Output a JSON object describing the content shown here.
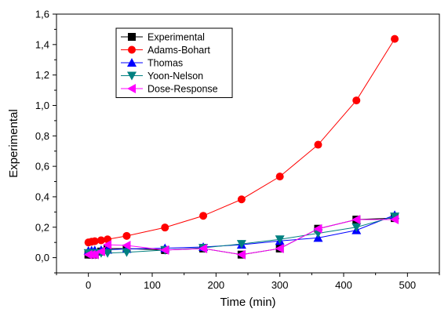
{
  "chart_data": {
    "type": "line",
    "xlabel": "Time (min)",
    "ylabel": "Experimental",
    "xlim": [
      -50,
      550
    ],
    "ylim": [
      -0.1,
      1.6
    ],
    "xticks": [
      0,
      100,
      200,
      300,
      400,
      500
    ],
    "xtick_labels": [
      "0",
      "100",
      "200",
      "300",
      "400",
      "500"
    ],
    "yticks": [
      0.0,
      0.2,
      0.4,
      0.6,
      0.8,
      1.0,
      1.2,
      1.4,
      1.6
    ],
    "ytick_labels": [
      "0,0",
      "0,2",
      "0,4",
      "0,6",
      "0,8",
      "1,0",
      "1,2",
      "1,4",
      "1,6"
    ],
    "grid": false,
    "legend_position": "top-left",
    "series": [
      {
        "name": "Experimental",
        "color": "#000000",
        "marker": "square",
        "x": [
          0,
          5,
          10,
          20,
          30,
          60,
          120,
          180,
          240,
          300,
          360,
          420,
          480
        ],
        "y": [
          0.02,
          0.02,
          0.02,
          0.04,
          0.06,
          0.06,
          0.05,
          0.06,
          0.02,
          0.06,
          0.19,
          0.25,
          0.26
        ]
      },
      {
        "name": "Adams-Bohart",
        "color": "#ff0000",
        "marker": "circle",
        "x": [
          0,
          5,
          10,
          20,
          30,
          60,
          120,
          180,
          240,
          300,
          360,
          420,
          480
        ],
        "y": [
          0.1,
          0.105,
          0.108,
          0.114,
          0.12,
          0.143,
          0.198,
          0.275,
          0.383,
          0.533,
          0.742,
          1.033,
          1.437
        ]
      },
      {
        "name": "Thomas",
        "color": "#0000ff",
        "marker": "triangle-up",
        "x": [
          0,
          5,
          10,
          20,
          30,
          60,
          120,
          180,
          240,
          300,
          360,
          420,
          480
        ],
        "y": [
          0.045,
          0.047,
          0.048,
          0.05,
          0.052,
          0.057,
          0.062,
          0.07,
          0.085,
          0.11,
          0.13,
          0.18,
          0.28
        ]
      },
      {
        "name": "Yoon-Nelson",
        "color": "#008080",
        "marker": "triangle-down",
        "x": [
          0,
          5,
          10,
          20,
          30,
          60,
          120,
          180,
          240,
          300,
          360,
          420,
          480
        ],
        "y": [
          0.03,
          0.03,
          0.03,
          0.03,
          0.03,
          0.035,
          0.05,
          0.065,
          0.09,
          0.12,
          0.16,
          0.2,
          0.27
        ]
      },
      {
        "name": "Dose-Response",
        "color": "#ff00ff",
        "marker": "triangle-left",
        "x": [
          0,
          5,
          10,
          20,
          30,
          60,
          120,
          180,
          240,
          300,
          360,
          420,
          480
        ],
        "y": [
          0.02,
          0.02,
          0.02,
          0.04,
          0.085,
          0.08,
          0.05,
          0.06,
          0.02,
          0.06,
          0.19,
          0.25,
          0.25
        ]
      }
    ]
  }
}
